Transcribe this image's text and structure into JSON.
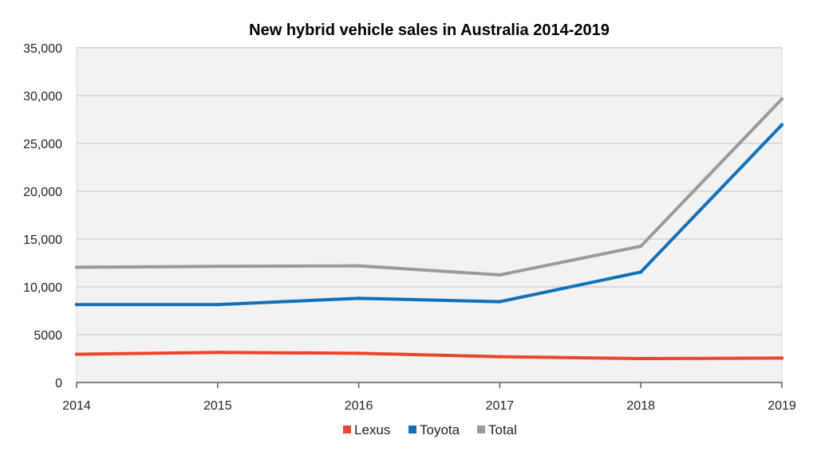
{
  "chart_data": {
    "type": "line",
    "title": "New hybrid vehicle sales in Australia 2014-2019",
    "xlabel": "",
    "ylabel": "",
    "x": [
      "2014",
      "2015",
      "2016",
      "2017",
      "2018",
      "2019"
    ],
    "x_ticks": [
      "2014",
      "2015",
      "2016",
      "2017",
      "2018",
      "2019"
    ],
    "y_ticks": [
      "0",
      "5000",
      "10,000",
      "15,000",
      "20,000",
      "25,000",
      "30,000",
      "35,000"
    ],
    "ylim": [
      0,
      35000
    ],
    "grid": true,
    "legend_position": "bottom",
    "series": [
      {
        "name": "Lexus",
        "color": "#e8452c",
        "values": [
          2950,
          3150,
          3050,
          2700,
          2500,
          2550
        ]
      },
      {
        "name": "Toyota",
        "color": "#1170b8",
        "values": [
          8150,
          8150,
          8800,
          8450,
          11550,
          26950
        ]
      },
      {
        "name": "Total",
        "color": "#9a9a9a",
        "values": [
          12050,
          12150,
          12200,
          11250,
          14250,
          29650
        ]
      }
    ],
    "plot_background": "#f2f2f2",
    "gridline_color": "#d9d9d9"
  }
}
